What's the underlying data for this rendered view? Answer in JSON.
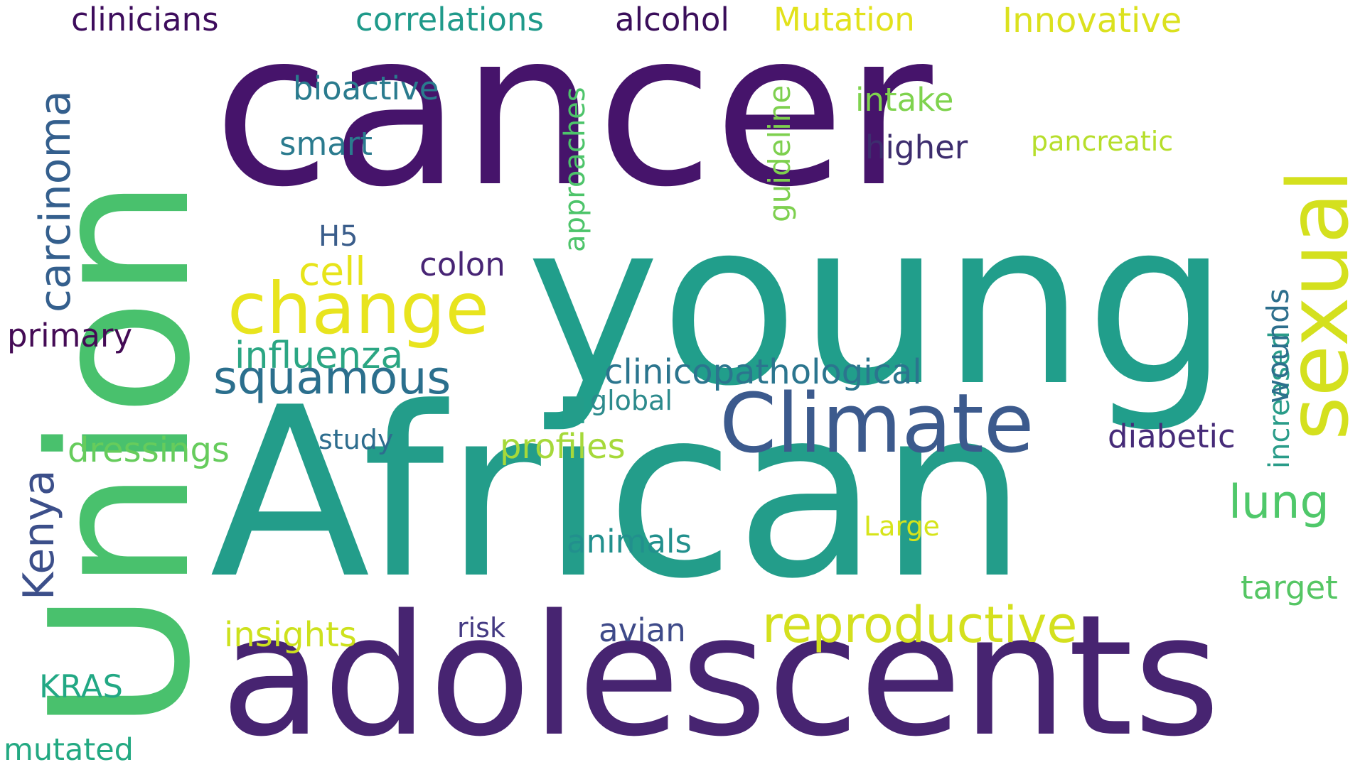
{
  "words": [
    {
      "text": "cancer",
      "color": "#46146b"
    },
    {
      "text": "Union",
      "color": "#49c16d"
    },
    {
      "text": "young",
      "color": "#219e8b"
    },
    {
      "text": "African",
      "color": "#239d8a"
    },
    {
      "text": "adolescents",
      "color": "#472471"
    },
    {
      "text": "change",
      "color": "#e8e41e"
    },
    {
      "text": "Climate",
      "color": "#3c5a8d"
    },
    {
      "text": "sexual",
      "color": "#d4e01e"
    },
    {
      "text": "reproductive",
      "color": "#d4e01e"
    },
    {
      "text": "squamous",
      "color": "#2b6f8d"
    },
    {
      "text": "carcinoma",
      "color": "#345f8d"
    },
    {
      "text": "cell",
      "color": "#e7e41a"
    },
    {
      "text": "Kenya",
      "color": "#3c4f8a"
    },
    {
      "text": "lung",
      "color": "#4fc86a"
    },
    {
      "text": "clinicopathological",
      "color": "#2b758e"
    },
    {
      "text": "influenza",
      "color": "#2ba683"
    },
    {
      "text": "approaches",
      "color": "#4dc46a"
    },
    {
      "text": "dressings",
      "color": "#66cc5c"
    },
    {
      "text": "profiles",
      "color": "#a6d93a"
    },
    {
      "text": "insights",
      "color": "#cde11d"
    },
    {
      "text": "diabetic",
      "color": "#462b78"
    },
    {
      "text": "increased",
      "color": "#2a9c89"
    },
    {
      "text": "target",
      "color": "#55c664"
    },
    {
      "text": "wounds",
      "color": "#2d6f8d"
    },
    {
      "text": "guideline",
      "color": "#7ed04f"
    },
    {
      "text": "clinicians",
      "color": "#3d0c5c"
    },
    {
      "text": "correlations",
      "color": "#1f9a8a"
    },
    {
      "text": "alcohol",
      "color": "#3a0e5a"
    },
    {
      "text": "Mutation",
      "color": "#e2e21b"
    },
    {
      "text": "Innovative",
      "color": "#dbe11e"
    },
    {
      "text": "bioactive",
      "color": "#2a7b8e"
    },
    {
      "text": "intake",
      "color": "#7fd34e"
    },
    {
      "text": "smart",
      "color": "#2b7b8e"
    },
    {
      "text": "higher",
      "color": "#3d2d6e"
    },
    {
      "text": "pancreatic",
      "color": "#b6de2b"
    },
    {
      "text": "H5",
      "color": "#3a5d8b"
    },
    {
      "text": "colon",
      "color": "#482575"
    },
    {
      "text": "primary",
      "color": "#440b55"
    },
    {
      "text": "global",
      "color": "#2c8a8c"
    },
    {
      "text": "study",
      "color": "#2e6d8e"
    },
    {
      "text": "animals",
      "color": "#22908d"
    },
    {
      "text": "Large",
      "color": "#d6e41a"
    },
    {
      "text": "risk",
      "color": "#443a83"
    },
    {
      "text": "avian",
      "color": "#3e4a89"
    },
    {
      "text": "KRAS",
      "color": "#22a884"
    },
    {
      "text": "mutated",
      "color": "#23a982"
    }
  ]
}
